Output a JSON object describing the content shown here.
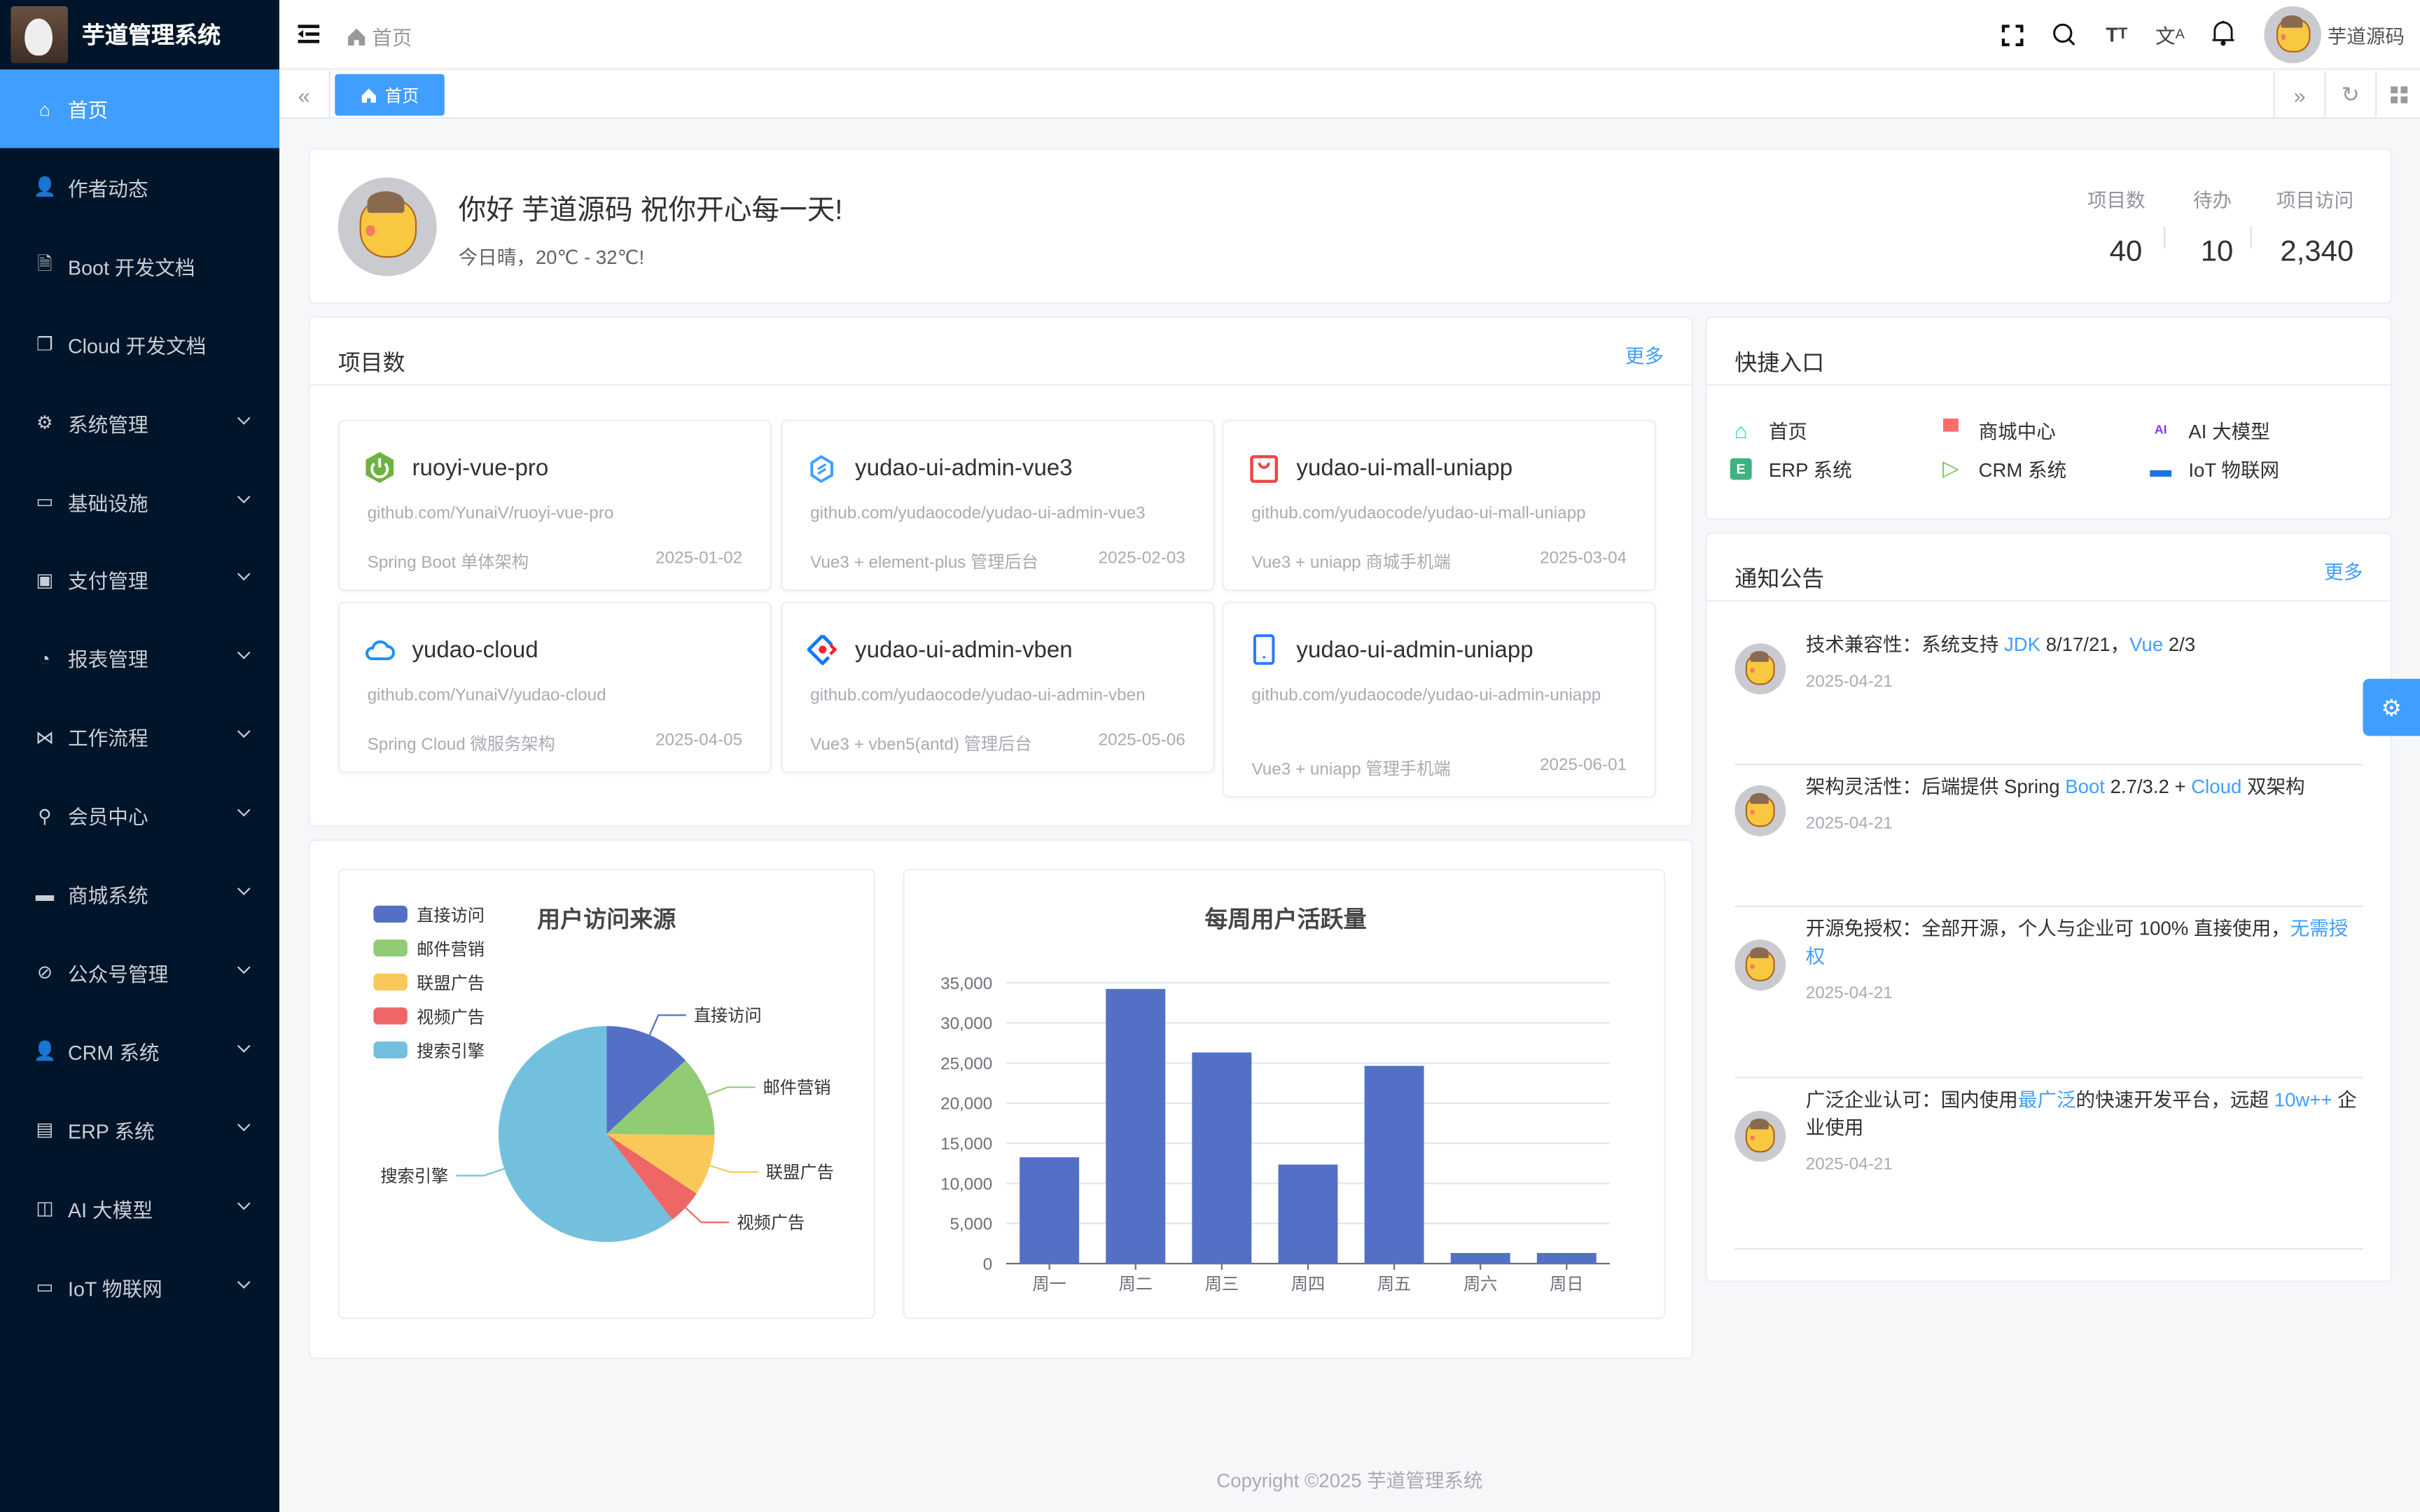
{
  "app": {
    "title": "芋道管理系统"
  },
  "sidebar": {
    "items": [
      {
        "label": "首页",
        "icon": "home-icon",
        "active": true,
        "submenu": false
      },
      {
        "label": "作者动态",
        "icon": "user-icon",
        "submenu": false
      },
      {
        "label": "Boot 开发文档",
        "icon": "document-icon",
        "submenu": false
      },
      {
        "label": "Cloud 开发文档",
        "icon": "documents-icon",
        "submenu": false
      },
      {
        "label": "系统管理",
        "icon": "gear-icon",
        "submenu": true
      },
      {
        "label": "基础设施",
        "icon": "monitor-icon",
        "submenu": true
      },
      {
        "label": "支付管理",
        "icon": "payment-icon",
        "submenu": true
      },
      {
        "label": "报表管理",
        "icon": "pie-chart-icon",
        "submenu": true
      },
      {
        "label": "工作流程",
        "icon": "workflow-icon",
        "submenu": true
      },
      {
        "label": "会员中心",
        "icon": "bicycle-icon",
        "submenu": true
      },
      {
        "label": "商城系统",
        "icon": "shop-icon",
        "submenu": true
      },
      {
        "label": "公众号管理",
        "icon": "compass-icon",
        "submenu": true
      },
      {
        "label": "CRM 系统",
        "icon": "user-icon",
        "submenu": true
      },
      {
        "label": "ERP 系统",
        "icon": "store-icon",
        "submenu": true
      },
      {
        "label": "AI 大模型",
        "icon": "ai-icon",
        "submenu": true
      },
      {
        "label": "IoT 物联网",
        "icon": "iot-icon",
        "submenu": true
      }
    ]
  },
  "header": {
    "breadcrumb": "首页",
    "user_name": "芋道源码",
    "icons": [
      "menu-fold-icon",
      "fullscreen-icon",
      "search-icon",
      "font-size-icon",
      "translate-icon",
      "bell-icon"
    ]
  },
  "tags": {
    "items": [
      {
        "label": "首页",
        "active": true
      }
    ]
  },
  "welcome": {
    "greeting": "你好 芋道源码 祝你开心每一天!",
    "weather": "今日晴，20℃ - 32℃!",
    "stats": [
      {
        "label": "项目数",
        "value": "40"
      },
      {
        "label": "待办",
        "value": "10"
      },
      {
        "label": "项目访问",
        "value": "2,340"
      }
    ]
  },
  "projects": {
    "title": "项目数",
    "more": "更多",
    "items": [
      {
        "name": "ruoyi-vue-pro",
        "url": "github.com/YunaiV/ruoyi-vue-pro",
        "desc": "Spring Boot 单体架构",
        "date": "2025-01-02",
        "icon": "spring-power-icon",
        "color": "#6db33f"
      },
      {
        "name": "yudao-ui-admin-vue3",
        "url": "github.com/yudaocode/yudao-ui-admin-vue3",
        "desc": "Vue3 + element-plus 管理后台",
        "date": "2025-02-03",
        "icon": "element-plus-icon",
        "color": "#409eff"
      },
      {
        "name": "yudao-ui-mall-uniapp",
        "url": "github.com/yudaocode/yudao-ui-mall-uniapp",
        "desc": "Vue3 + uniapp 商城手机端",
        "date": "2025-03-04",
        "icon": "shopping-bag-icon",
        "color": "#ef4444"
      },
      {
        "name": "yudao-cloud",
        "url": "github.com/YunaiV/yudao-cloud",
        "desc": "Spring Cloud 微服务架构",
        "date": "2025-04-05",
        "icon": "cloud-icon",
        "color": "#1890ff"
      },
      {
        "name": "yudao-ui-admin-vben",
        "url": "github.com/yudaocode/yudao-ui-admin-vben",
        "desc": "Vue3 + vben5(antd) 管理后台",
        "date": "2025-05-06",
        "icon": "ant-design-icon",
        "color": "#1677ff"
      },
      {
        "name": "yudao-ui-admin-uniapp",
        "url": "github.com/yudaocode/yudao-ui-admin-uniapp",
        "desc": "Vue3 + uniapp 管理手机端",
        "date": "2025-06-01",
        "icon": "mobile-icon",
        "color": "#2979ff"
      }
    ]
  },
  "quick_entry": {
    "title": "快捷入口",
    "items": [
      {
        "label": "首页",
        "icon": "home-outline-icon",
        "color": "#1fdaca"
      },
      {
        "label": "商城中心",
        "icon": "shop-icon",
        "color": "#ff6b6b"
      },
      {
        "label": "AI 大模型",
        "icon": "ai-icon",
        "color": "#7c3aed"
      },
      {
        "label": "ERP 系统",
        "icon": "erp-icon",
        "color": "#3fb27f"
      },
      {
        "label": "CRM 系统",
        "icon": "crm-play-icon",
        "color": "#4daf1bc9"
      },
      {
        "label": "IoT 物联网",
        "icon": "iot-icon",
        "color": "#1a73e8"
      }
    ]
  },
  "notices": {
    "title": "通知公告",
    "more": "更多",
    "items": [
      {
        "segments": [
          {
            "text": "技术兼容性：系统支持 "
          },
          {
            "text": "JDK",
            "link": true
          },
          {
            "text": " 8/17/21，"
          },
          {
            "text": "Vue",
            "link": true
          },
          {
            "text": " 2/3"
          }
        ],
        "date": "2025-04-21"
      },
      {
        "segments": [
          {
            "text": "架构灵活性：后端提供 Spring "
          },
          {
            "text": "Boot",
            "link": true
          },
          {
            "text": " 2.7/3.2 + "
          },
          {
            "text": "Cloud",
            "link": true
          },
          {
            "text": " 双架构"
          }
        ],
        "date": "2025-04-21"
      },
      {
        "segments": [
          {
            "text": "开源免授权：全部开源，个人与企业可 100% 直接使用，"
          },
          {
            "text": "无需授权",
            "link": true
          }
        ],
        "date": "2025-04-21"
      },
      {
        "segments": [
          {
            "text": "广泛企业认可：国内使用"
          },
          {
            "text": "最广泛",
            "link": true
          },
          {
            "text": "的快速开发平台，远超 "
          },
          {
            "text": "10w++",
            "link": true
          },
          {
            "text": " 企业使用"
          }
        ],
        "date": "2025-04-21"
      }
    ]
  },
  "footer": {
    "copyright": "Copyright ©2025 芋道管理系统"
  },
  "colors": {
    "primary": "#409eff",
    "sidebar_bg": "#001529"
  },
  "chart_data": [
    {
      "type": "pie",
      "title": "用户访问来源",
      "legend_position": "top-left",
      "categories": [
        "直接访问",
        "邮件营销",
        "联盟广告",
        "视频广告",
        "搜索引擎"
      ],
      "values": [
        335,
        310,
        234,
        135,
        1548
      ],
      "colors": [
        "#5470c6",
        "#91cc75",
        "#fac858",
        "#ee6666",
        "#73c0de"
      ]
    },
    {
      "type": "bar",
      "title": "每周用户活跃量",
      "categories": [
        "周一",
        "周二",
        "周三",
        "周四",
        "周五",
        "周六",
        "周日"
      ],
      "values": [
        13253,
        34235,
        26321,
        12340,
        24643,
        1322,
        1324
      ],
      "ylim": [
        0,
        35000
      ],
      "yticks": [
        "0",
        "5,000",
        "10,000",
        "15,000",
        "20,000",
        "25,000",
        "30,000",
        "35,000"
      ],
      "grid": true,
      "color": "#5470c6"
    }
  ]
}
